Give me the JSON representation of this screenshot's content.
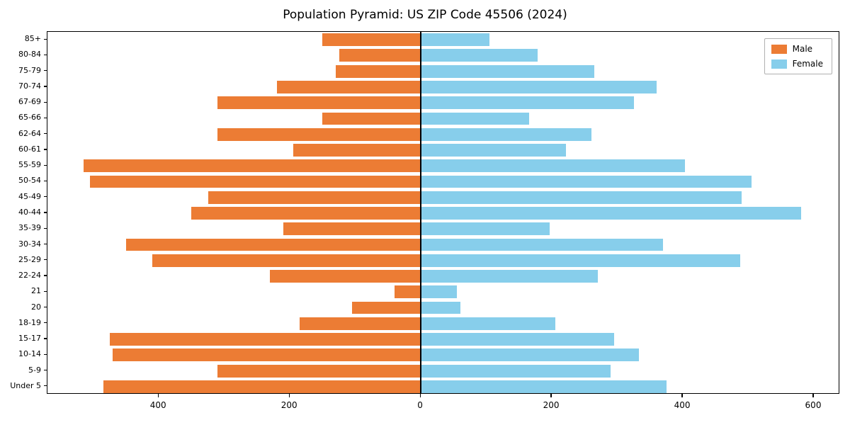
{
  "chart_data": {
    "type": "bar",
    "variant": "population-pyramid",
    "title": "Population Pyramid: US ZIP Code 45506 (2024)",
    "categories": [
      "85+",
      "80-84",
      "75-79",
      "70-74",
      "67-69",
      "65-66",
      "62-64",
      "60-61",
      "55-59",
      "50-54",
      "45-49",
      "40-44",
      "35-39",
      "30-34",
      "25-29",
      "22-24",
      "21",
      "20",
      "18-19",
      "15-17",
      "10-14",
      "5-9",
      "Under 5"
    ],
    "series": [
      {
        "name": "Male",
        "side": "left",
        "color": "#ec7c34",
        "values": [
          150,
          125,
          130,
          220,
          310,
          150,
          310,
          195,
          515,
          505,
          325,
          350,
          210,
          450,
          410,
          230,
          40,
          105,
          185,
          475,
          470,
          310,
          485
        ]
      },
      {
        "name": "Female",
        "side": "right",
        "color": "#87ceeb",
        "values": [
          105,
          178,
          265,
          360,
          325,
          165,
          260,
          222,
          403,
          505,
          490,
          580,
          197,
          370,
          488,
          270,
          55,
          60,
          205,
          295,
          333,
          290,
          375
        ]
      }
    ],
    "xlim": [
      -570,
      640
    ],
    "x_ticks": [
      {
        "value": -400,
        "label": "400"
      },
      {
        "value": -200,
        "label": "200"
      },
      {
        "value": 0,
        "label": "0"
      },
      {
        "value": 200,
        "label": "200"
      },
      {
        "value": 400,
        "label": "400"
      },
      {
        "value": 600,
        "label": "600"
      }
    ],
    "legend_position": "upper-right",
    "grid": false,
    "axis_color": "#000000",
    "bar_width_fraction": 0.8
  }
}
